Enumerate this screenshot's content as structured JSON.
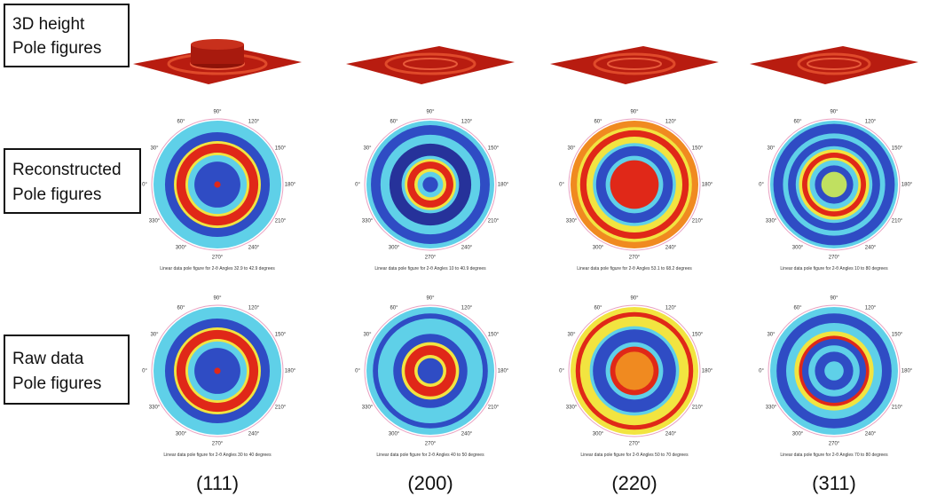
{
  "row_labels": [
    [
      "3D height",
      "Pole figures"
    ],
    [
      "Reconstructed",
      "Pole figures"
    ],
    [
      "Raw data",
      "Pole figures"
    ]
  ],
  "column_labels": [
    "(111)",
    "(200)",
    "(220)",
    "(311)"
  ],
  "angle_labels": [
    "90°",
    "60°",
    "120°",
    "30°",
    "150°",
    "0°",
    "180°",
    "330°",
    "210°",
    "300°",
    "240°",
    "270°"
  ],
  "captions": {
    "reconstructed": [
      "Linear data pole figure for 2-θ Angles 32.9 to 42.9 degrees",
      "Linear data pole figure for 2-θ Angles 10 to 40.9 degrees",
      "Linear data pole figure for 2-θ Angles 53.1 to 68.2 degrees",
      "Linear data pole figure for 2-θ Angles 10 to 80 degrees"
    ],
    "raw": [
      "Linear data pole figure for 2-θ Angles 30 to 40 degrees",
      "Linear data pole figure for 2-θ Angles 40 to 50 degrees",
      "Linear data pole figure for 2-θ Angles 50 to 70 degrees",
      "Linear data pole figure for 2-θ Angles 70 to 80 degrees"
    ]
  }
}
